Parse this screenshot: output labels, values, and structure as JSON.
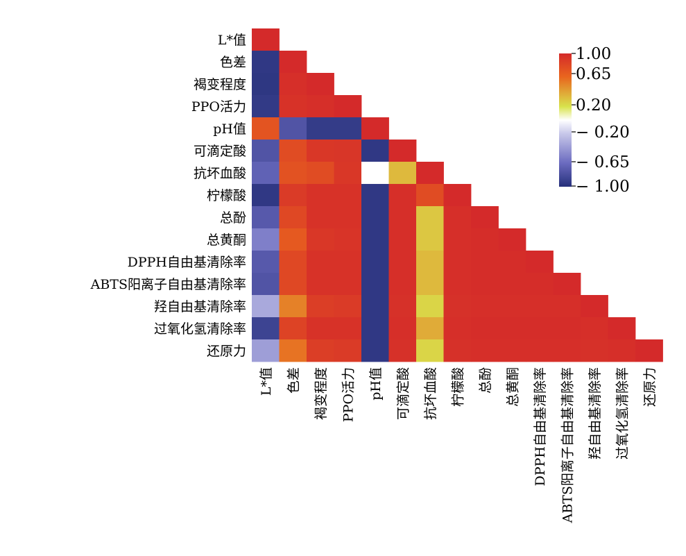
{
  "chart_data": {
    "type": "heatmap",
    "variables": [
      "L*值",
      "色差",
      "褐变程度",
      "PPO活力",
      "pH值",
      "可滴定酸",
      "抗坏血酸",
      "柠檬酸",
      "总酚",
      "总黄酮",
      "DPPH自由基清除率",
      "ABTS阳离子自由基清除率",
      "羟自由基清除率",
      "过氧化氢清除率",
      "还原力"
    ],
    "matrix": [
      [
        1.0
      ],
      [
        -0.95,
        1.0
      ],
      [
        -0.96,
        0.97,
        1.0
      ],
      [
        -0.94,
        0.95,
        0.97,
        1.0
      ],
      [
        0.75,
        -0.78,
        -0.93,
        -0.93,
        1.0
      ],
      [
        -0.78,
        0.8,
        0.92,
        0.93,
        -0.95,
        1.0
      ],
      [
        -0.7,
        0.76,
        0.8,
        0.92,
        0.0,
        0.35,
        1.0
      ],
      [
        -0.95,
        0.9,
        0.95,
        0.95,
        -0.95,
        0.97,
        0.8,
        1.0
      ],
      [
        -0.75,
        0.82,
        0.95,
        0.95,
        -0.95,
        0.97,
        0.3,
        0.97,
        1.0
      ],
      [
        -0.55,
        0.72,
        0.92,
        0.94,
        -0.95,
        0.97,
        0.3,
        0.97,
        0.98,
        1.0
      ],
      [
        -0.75,
        0.82,
        0.95,
        0.95,
        -0.95,
        0.97,
        0.35,
        0.97,
        0.98,
        0.98,
        1.0
      ],
      [
        -0.78,
        0.82,
        0.95,
        0.95,
        -0.95,
        0.97,
        0.35,
        0.97,
        0.98,
        0.98,
        0.98,
        1.0
      ],
      [
        -0.35,
        0.55,
        0.88,
        0.9,
        -0.95,
        0.96,
        0.25,
        0.96,
        0.97,
        0.97,
        0.97,
        0.97,
        1.0
      ],
      [
        -0.88,
        0.85,
        0.95,
        0.95,
        -0.95,
        0.97,
        0.4,
        0.97,
        0.98,
        0.98,
        0.98,
        0.98,
        0.97,
        1.0
      ],
      [
        -0.4,
        0.6,
        0.88,
        0.9,
        -0.95,
        0.96,
        0.25,
        0.96,
        0.97,
        0.97,
        0.97,
        0.97,
        0.96,
        0.97,
        1.0
      ]
    ],
    "colorbar": {
      "ticks": [
        "1.00",
        "0.65",
        "0.20",
        "− 0.20",
        "− 0.65",
        "− 1.00"
      ],
      "tick_values": [
        1.0,
        0.65,
        0.2,
        -0.2,
        -0.65,
        -1.0
      ],
      "range": [
        -1,
        1
      ],
      "placement": "top-right"
    },
    "colors": {
      "pos_high": "#D42A2A",
      "pos_mid": "#E9651E",
      "pos_low": "#D8E34C",
      "zero": "#FFFFFF",
      "neg_low": "#C8C8EA",
      "neg_mid": "#6A6ABF",
      "neg_high": "#26307A"
    }
  }
}
